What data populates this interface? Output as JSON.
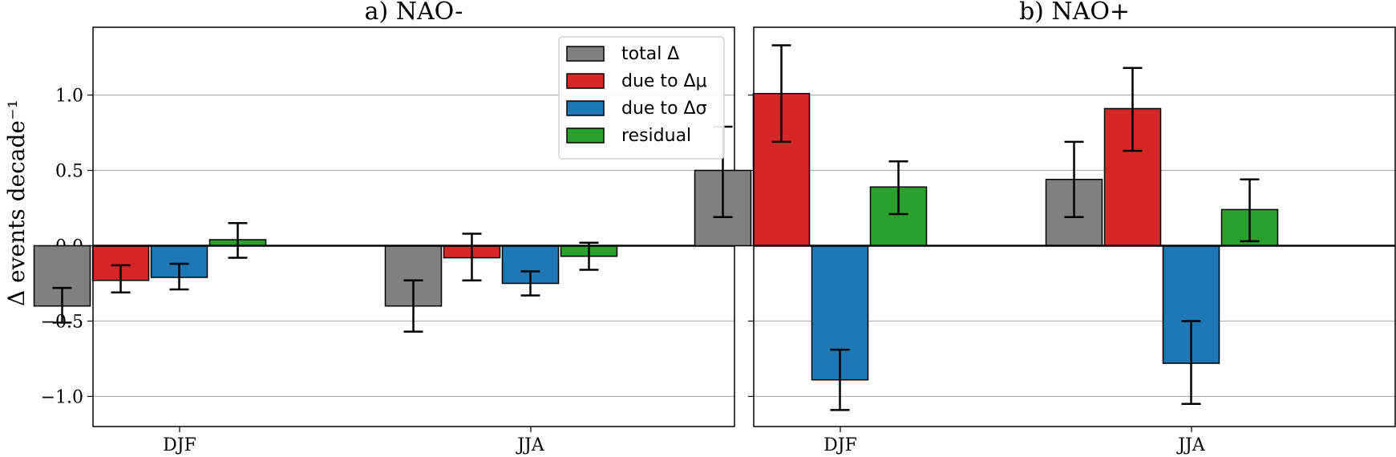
{
  "figure": {
    "ylabel": "Δ events decade⁻¹"
  },
  "legend": {
    "placement": "top-right of panel a",
    "items": [
      {
        "label": "total Δ",
        "color": "#808080"
      },
      {
        "label": "due to Δμ",
        "color": "#d62728"
      },
      {
        "label": "due to Δσ",
        "color": "#1f77b4"
      },
      {
        "label": "residual",
        "color": "#2ca02c"
      }
    ]
  },
  "chart_data": [
    {
      "type": "bar",
      "title": "a) NAO-",
      "categories": [
        "DJF",
        "JJA"
      ],
      "ylabel": "Δ events decade⁻¹",
      "ylim": [
        -1.2,
        1.45
      ],
      "yticks": [
        -1.0,
        -0.5,
        0.0,
        0.5,
        1.0
      ],
      "ytick_labels": [
        "−1.0",
        "−0.5",
        "0.0",
        "0.5",
        "1.0"
      ],
      "grid": "y",
      "series": [
        {
          "name": "total Δ",
          "color": "#808080",
          "values": [
            -0.4,
            -0.4
          ],
          "err_low": [
            -0.51,
            -0.57
          ],
          "err_high": [
            -0.28,
            -0.23
          ]
        },
        {
          "name": "due to Δμ",
          "color": "#d62728",
          "values": [
            -0.23,
            -0.08
          ],
          "err_low": [
            -0.31,
            -0.23
          ],
          "err_high": [
            -0.13,
            0.08
          ]
        },
        {
          "name": "due to Δσ",
          "color": "#1f77b4",
          "values": [
            -0.21,
            -0.25
          ],
          "err_low": [
            -0.29,
            -0.33
          ],
          "err_high": [
            -0.12,
            -0.17
          ]
        },
        {
          "name": "residual",
          "color": "#2ca02c",
          "values": [
            0.04,
            -0.07
          ],
          "err_low": [
            -0.08,
            -0.16
          ],
          "err_high": [
            0.15,
            0.02
          ]
        }
      ]
    },
    {
      "type": "bar",
      "title": "b) NAO+",
      "categories": [
        "DJF",
        "JJA"
      ],
      "ylim": [
        -1.2,
        1.45
      ],
      "yticks": [
        -1.0,
        -0.5,
        0.0,
        0.5,
        1.0
      ],
      "grid": "y",
      "series": [
        {
          "name": "total Δ",
          "color": "#808080",
          "values": [
            0.5,
            0.44
          ],
          "err_low": [
            0.19,
            0.19
          ],
          "err_high": [
            0.79,
            0.69
          ]
        },
        {
          "name": "due to Δμ",
          "color": "#d62728",
          "values": [
            1.01,
            0.91
          ],
          "err_low": [
            0.69,
            0.63
          ],
          "err_high": [
            1.33,
            1.18
          ]
        },
        {
          "name": "due to Δσ",
          "color": "#1f77b4",
          "values": [
            -0.89,
            -0.78
          ],
          "err_low": [
            -1.09,
            -1.05
          ],
          "err_high": [
            -0.69,
            -0.5
          ]
        },
        {
          "name": "residual",
          "color": "#2ca02c",
          "values": [
            0.39,
            0.24
          ],
          "err_low": [
            0.21,
            0.03
          ],
          "err_high": [
            0.56,
            0.44
          ]
        }
      ]
    }
  ]
}
